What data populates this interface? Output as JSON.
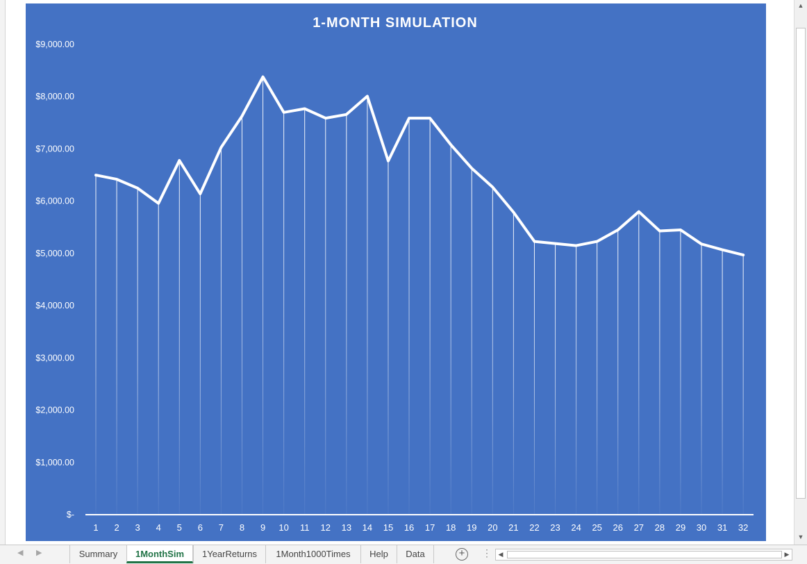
{
  "chart_data": {
    "type": "line",
    "title": "1-MONTH SIMULATION",
    "xlabel": "",
    "ylabel": "",
    "ylim": [
      0,
      9000
    ],
    "y_ticks": [
      "$-",
      "$1,000.00",
      "$2,000.00",
      "$3,000.00",
      "$4,000.00",
      "$5,000.00",
      "$6,000.00",
      "$7,000.00",
      "$8,000.00",
      "$9,000.00"
    ],
    "y_tick_values": [
      0,
      1000,
      2000,
      3000,
      4000,
      5000,
      6000,
      7000,
      8000,
      9000
    ],
    "categories": [
      "1",
      "2",
      "3",
      "4",
      "5",
      "6",
      "7",
      "8",
      "9",
      "10",
      "11",
      "12",
      "13",
      "14",
      "15",
      "16",
      "17",
      "18",
      "19",
      "20",
      "21",
      "22",
      "23",
      "24",
      "25",
      "26",
      "27",
      "28",
      "29",
      "30",
      "31",
      "32"
    ],
    "series": [
      {
        "values": [
          6500,
          6420,
          6250,
          5960,
          6780,
          6140,
          7030,
          7630,
          8380,
          7700,
          7770,
          7590,
          7660,
          8010,
          6770,
          7590,
          7590,
          7080,
          6630,
          6270,
          5790,
          5230,
          5190,
          5150,
          5230,
          5450,
          5800,
          5430,
          5450,
          5180,
          5070,
          4970
        ]
      }
    ],
    "drop_lines": true,
    "grid": false,
    "legend": "none",
    "colors": {
      "background": "#4472c4",
      "line": "#ffffff"
    }
  },
  "sheet_tabs": [
    {
      "label": "Summary",
      "active": false
    },
    {
      "label": "1MonthSim",
      "active": true
    },
    {
      "label": "1YearReturns",
      "active": false
    },
    {
      "label": "1Month1000Times",
      "active": false
    },
    {
      "label": "Help",
      "active": false
    },
    {
      "label": "Data",
      "active": false
    }
  ],
  "icons": {
    "nav_prev": "triangle-left-icon",
    "nav_next": "triangle-right-icon",
    "add_sheet": "plus-circle-icon",
    "more_options": "vertical-dots-icon",
    "scroll_up": "triangle-up-icon",
    "scroll_down": "triangle-down-icon",
    "scroll_left": "triangle-left-icon",
    "scroll_right": "triangle-right-icon"
  },
  "accent_color": "#217346"
}
